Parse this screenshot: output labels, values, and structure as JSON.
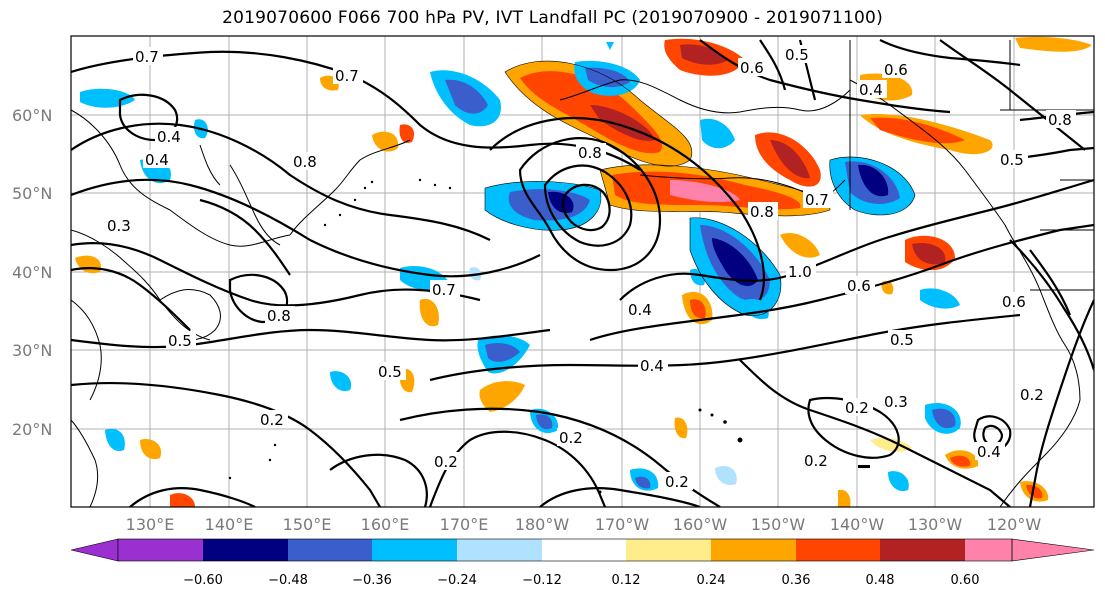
{
  "title": "2019070600 F066 700 hPa PV, IVT Landfall PC (2019070900 - 2019071100)",
  "latitude_labels": [
    "60°N",
    "50°N",
    "40°N",
    "30°N",
    "20°N"
  ],
  "longitude_labels": [
    "130°E",
    "140°E",
    "150°E",
    "160°E",
    "170°E",
    "180°W",
    "170°W",
    "160°W",
    "150°W",
    "140°W",
    "130°W",
    "120°W"
  ],
  "contour_labels": [
    "0.7",
    "0.7",
    "0.4",
    "0.4",
    "0.3",
    "0.8",
    "0.8",
    "0.6",
    "0.5",
    "0.6",
    "0.4",
    "0.8",
    "0.5",
    "0.8",
    "0.7",
    "0.4",
    "1.0",
    "0.6",
    "0.5",
    "0.5",
    "0.4",
    "0.2",
    "0.2",
    "0.2",
    "0.2",
    "0.2",
    "0.3",
    "0.2",
    "0.4",
    "0.2",
    "0.6",
    "0.7",
    "0.8",
    "0.5"
  ],
  "colorbar": {
    "ticks": [
      "−0.60",
      "−0.48",
      "−0.36",
      "−0.24",
      "−0.12",
      "0.12",
      "0.24",
      "0.36",
      "0.48",
      "0.60"
    ],
    "colors": [
      "#9b30d0",
      "#000080",
      "#3a5fcd",
      "#00bfff",
      "#b0e2ff",
      "#ffffff",
      "#ffec8b",
      "#ffa500",
      "#ff4500",
      "#b22222",
      "#ff82ab"
    ]
  }
}
